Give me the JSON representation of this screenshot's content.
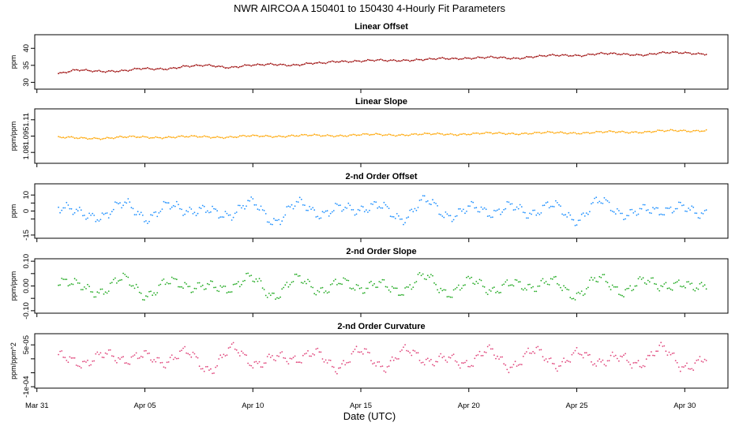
{
  "title": "NWR   AIRCOA A   150401 to 150430   4-Hourly Fit Parameters",
  "xlabel": "Date (UTC)",
  "x_ticks": [
    "Mar 31",
    "Apr 05",
    "Apr 10",
    "Apr 15",
    "Apr 20",
    "Apr 25",
    "Apr 30"
  ],
  "x_tick_days": [
    0,
    5,
    10,
    15,
    20,
    25,
    30
  ],
  "xlim_days": [
    -0.1,
    32.0
  ],
  "x_start_day": 1.0,
  "x_end_day": 31.0,
  "chart_data": [
    {
      "type": "scatter",
      "title": "Linear Offset",
      "ylabel": "ppm",
      "ylim": [
        28,
        44
      ],
      "y_ticks": [
        30,
        35,
        40
      ],
      "y_tick_labels": [
        "30",
        "35",
        "40"
      ],
      "color": "#990000",
      "series": [
        {
          "values": [
            32.6,
            33.5,
            33.4,
            33.3,
            34.0,
            34.1,
            34.6,
            35.0,
            34.5,
            34.9,
            35.4,
            35.1,
            35.5,
            36.3,
            36.2,
            36.4,
            36.6,
            36.6,
            37.0,
            37.2,
            37.2,
            37.1,
            37.6,
            37.8,
            38.0,
            38.4,
            38.2,
            38.2,
            38.6,
            38.6,
            38.5
          ]
        }
      ]
    },
    {
      "type": "scatter",
      "title": "Linear Slope",
      "ylabel": "ppm/ppm",
      "ylim": [
        1.07,
        1.12
      ],
      "y_ticks": [
        1.08,
        1.095,
        1.11
      ],
      "y_tick_labels": [
        "1.08",
        "1.095",
        "1.11"
      ],
      "color": "#ffa500",
      "series": [
        {
          "values": [
            1.0935,
            1.093,
            1.0933,
            1.0938,
            1.094,
            1.0941,
            1.0942,
            1.0944,
            1.0942,
            1.0948,
            1.0951,
            1.0953,
            1.0954,
            1.0957,
            1.096,
            1.0962,
            1.0964,
            1.0965,
            1.0968,
            1.0971,
            1.0973,
            1.0975,
            1.0977,
            1.0979,
            1.0981,
            1.0984,
            1.0986,
            1.099,
            1.0995,
            1.0998,
            1.1005
          ]
        }
      ]
    },
    {
      "type": "scatter",
      "title": "2-nd Order Offset",
      "ylabel": "ppm",
      "ylim": [
        -17,
        17
      ],
      "y_ticks": [
        -15,
        -5,
        0,
        5,
        10
      ],
      "y_tick_labels": [
        "-15",
        "",
        "0",
        "",
        "10"
      ],
      "color": "#1e90ff",
      "series": [
        {
          "values": [
            0,
            -1,
            -2,
            3,
            -4,
            5,
            -3,
            3,
            -3,
            4,
            -5,
            4,
            -3,
            5,
            -2,
            4,
            -4,
            5,
            -2,
            3,
            -4,
            6,
            -3,
            3,
            -4,
            5,
            -2,
            3,
            -3,
            4,
            -1
          ]
        }
      ]
    },
    {
      "type": "scatter",
      "title": "2-nd Order Slope",
      "ylabel": "ppm/ppm",
      "ylim": [
        -0.11,
        0.11
      ],
      "y_ticks": [
        -0.1,
        -0.05,
        0.0,
        0.05,
        0.1
      ],
      "y_tick_labels": [
        "-0.10",
        "",
        "0.00",
        "",
        "0.10"
      ],
      "color": "#22aa22",
      "series": [
        {
          "values": [
            0.0,
            0.01,
            -0.02,
            0.02,
            -0.03,
            0.02,
            -0.02,
            0.02,
            -0.02,
            0.03,
            -0.03,
            0.02,
            -0.02,
            0.03,
            -0.03,
            0.02,
            -0.02,
            0.03,
            -0.02,
            0.02,
            -0.03,
            0.03,
            -0.02,
            0.02,
            -0.03,
            0.02,
            -0.02,
            0.03,
            -0.02,
            0.02,
            0.0
          ]
        }
      ]
    },
    {
      "type": "scatter",
      "title": "2-nd Order Curvature",
      "ylabel": "ppm/ppm^2",
      "ylim": [
        -0.000105,
        9e-05
      ],
      "y_ticks": [
        -0.0001,
        -5e-05,
        0.0,
        5e-05
      ],
      "y_tick_labels": [
        "-1e-04",
        "",
        "",
        "5e-05"
      ],
      "color": "#e0457b",
      "series": [
        {
          "values": [
            0.0,
            -1e-05,
            2e-05,
            -2e-05,
            3e-05,
            -2e-05,
            2e-05,
            -3e-05,
            3e-05,
            -2e-05,
            2e-05,
            -2e-05,
            3e-05,
            -3e-05,
            2e-05,
            -2e-05,
            3e-05,
            -2e-05,
            2e-05,
            -3e-05,
            3e-05,
            -2e-05,
            2e-05,
            -2e-05,
            3e-05,
            -3e-05,
            2e-05,
            -2e-05,
            3e-05,
            -2e-05,
            0.0
          ]
        }
      ]
    }
  ]
}
